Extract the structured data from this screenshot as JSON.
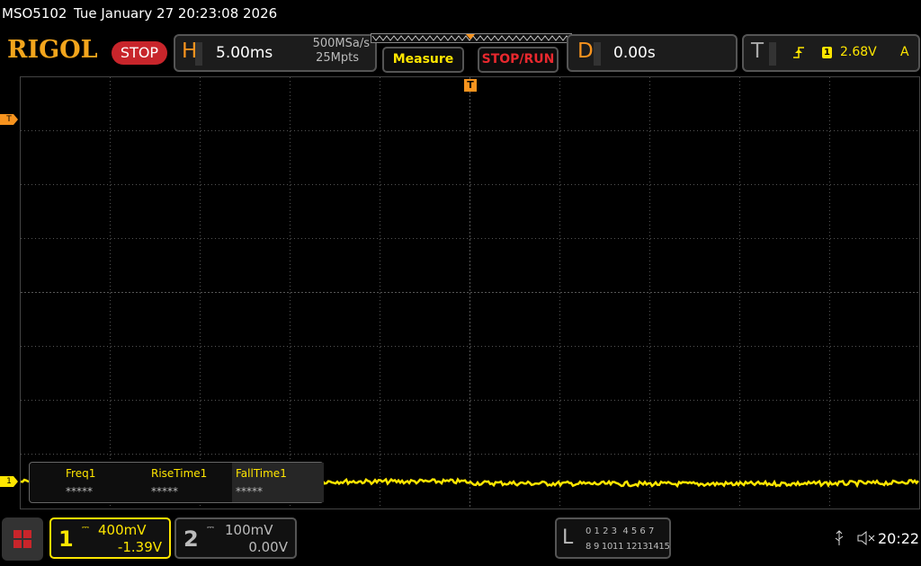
{
  "header": {
    "model": "MSO5102",
    "datetime": "Tue January 27 20:23:08 2026"
  },
  "toolbar": {
    "brand": "RIGOL",
    "run_state": "STOP",
    "horizontal": {
      "label": "H",
      "timebase": "5.00ms",
      "sample_rate": "500MSa/s",
      "memory_depth": "25Mpts"
    },
    "measure_button": "Measure",
    "stop_run_button": "STOP/RUN",
    "delay": {
      "label": "D",
      "value": "0.00s"
    },
    "trigger": {
      "label": "T",
      "source": "1",
      "level": "2.68V",
      "mode": "A"
    }
  },
  "markers": {
    "trigger_position": "T",
    "trigger_level": "T",
    "channel_1": "1"
  },
  "measurements": [
    {
      "name": "Freq1",
      "value": "*****"
    },
    {
      "name": "RiseTime1",
      "value": "*****"
    },
    {
      "name": "FallTime1",
      "value": "*****"
    }
  ],
  "channels": [
    {
      "number": "1",
      "scale": "400mV",
      "offset": "-1.39V"
    },
    {
      "number": "2",
      "scale": "100mV",
      "offset": "0.00V"
    }
  ],
  "logic": {
    "label": "L",
    "row_1": "0 1 2 3  4 5 6 7",
    "row_2": "8 9 1011 12131415"
  },
  "status": {
    "time": "20:22"
  }
}
